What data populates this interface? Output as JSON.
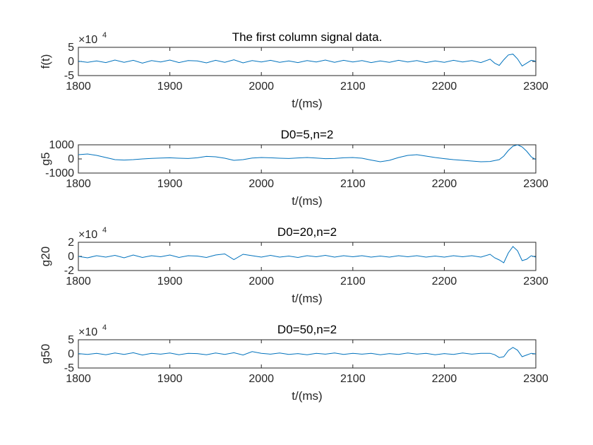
{
  "figure": {
    "background": "#ffffff",
    "line_color": "#0072BD"
  },
  "chart_data": [
    {
      "type": "line",
      "title": "The first column signal data.",
      "xlabel": "t/(ms)",
      "ylabel": "f(t)",
      "multiplier_base": "×10",
      "multiplier_exp": "4",
      "xlim": [
        1800,
        2300
      ],
      "ylim": [
        -5,
        5
      ],
      "xticks": [
        "1800",
        "1900",
        "2000",
        "2100",
        "2200",
        "2300"
      ],
      "yticks": [
        "5",
        "0",
        "-5"
      ],
      "series": [
        {
          "x": [
            1800,
            1810,
            1820,
            1830,
            1840,
            1850,
            1860,
            1870,
            1880,
            1890,
            1900,
            1910,
            1920,
            1930,
            1940,
            1950,
            1960,
            1970,
            1980,
            1990,
            2000,
            2010,
            2020,
            2030,
            2040,
            2050,
            2060,
            2070,
            2080,
            2090,
            2100,
            2110,
            2120,
            2130,
            2140,
            2150,
            2160,
            2170,
            2180,
            2190,
            2200,
            2210,
            2220,
            2230,
            2240,
            2250,
            2255,
            2260,
            2265,
            2270,
            2275,
            2280,
            2285,
            2290,
            2295,
            2300
          ],
          "y": [
            0.1,
            -0.3,
            0.2,
            -0.4,
            0.5,
            -0.3,
            0.4,
            -0.6,
            0.3,
            -0.2,
            0.5,
            -0.4,
            0.3,
            0.2,
            -0.5,
            0.4,
            -0.3,
            0.6,
            -0.5,
            0.3,
            -0.2,
            0.4,
            -0.3,
            0.2,
            -0.4,
            0.3,
            -0.2,
            0.5,
            -0.3,
            0.4,
            -0.2,
            0.3,
            -0.4,
            0.2,
            -0.3,
            0.4,
            -0.2,
            0.3,
            -0.4,
            0.2,
            -0.3,
            0.4,
            -0.2,
            0.3,
            -0.4,
            0.8,
            -0.6,
            -1.4,
            0.6,
            2.3,
            2.6,
            0.9,
            -1.6,
            -0.6,
            0.4,
            0.1
          ]
        }
      ]
    },
    {
      "type": "line",
      "title": "D0=5,n=2",
      "xlabel": "t/(ms)",
      "ylabel": "g5",
      "multiplier_base": "",
      "multiplier_exp": "",
      "xlim": [
        1800,
        2300
      ],
      "ylim": [
        -1000,
        1000
      ],
      "xticks": [
        "1800",
        "1900",
        "2000",
        "2100",
        "2200",
        "2300"
      ],
      "yticks": [
        "1000",
        "0",
        "-1000"
      ],
      "series": [
        {
          "x": [
            1800,
            1810,
            1820,
            1830,
            1840,
            1850,
            1860,
            1870,
            1880,
            1890,
            1900,
            1910,
            1920,
            1930,
            1940,
            1950,
            1960,
            1970,
            1980,
            1990,
            2000,
            2010,
            2020,
            2030,
            2040,
            2050,
            2060,
            2070,
            2080,
            2090,
            2100,
            2110,
            2120,
            2130,
            2140,
            2150,
            2160,
            2170,
            2180,
            2190,
            2200,
            2210,
            2220,
            2230,
            2240,
            2250,
            2260,
            2265,
            2270,
            2275,
            2280,
            2285,
            2290,
            2295,
            2300
          ],
          "y": [
            300,
            350,
            250,
            100,
            -50,
            -80,
            -50,
            0,
            40,
            60,
            80,
            50,
            30,
            80,
            180,
            150,
            50,
            -100,
            -50,
            60,
            100,
            80,
            50,
            30,
            70,
            100,
            60,
            20,
            30,
            80,
            100,
            50,
            -80,
            -200,
            -100,
            100,
            250,
            300,
            200,
            100,
            20,
            -50,
            -100,
            -150,
            -200,
            -180,
            -50,
            200,
            600,
            900,
            1000,
            850,
            550,
            150,
            -50
          ]
        }
      ]
    },
    {
      "type": "line",
      "title": "D0=20,n=2",
      "xlabel": "t/(ms)",
      "ylabel": "g20",
      "multiplier_base": "×10",
      "multiplier_exp": "4",
      "xlim": [
        1800,
        2300
      ],
      "ylim": [
        -2,
        2
      ],
      "xticks": [
        "1800",
        "1900",
        "2000",
        "2100",
        "2200",
        "2300"
      ],
      "yticks": [
        "2",
        "0",
        "-2"
      ],
      "series": [
        {
          "x": [
            1800,
            1810,
            1820,
            1830,
            1840,
            1850,
            1860,
            1870,
            1880,
            1890,
            1900,
            1910,
            1920,
            1930,
            1940,
            1950,
            1960,
            1970,
            1980,
            1990,
            2000,
            2010,
            2020,
            2030,
            2040,
            2050,
            2060,
            2070,
            2080,
            2090,
            2100,
            2110,
            2120,
            2130,
            2140,
            2150,
            2160,
            2170,
            2180,
            2190,
            2200,
            2210,
            2220,
            2230,
            2240,
            2250,
            2255,
            2260,
            2265,
            2270,
            2275,
            2280,
            2285,
            2290,
            2295,
            2300
          ],
          "y": [
            0.0,
            -0.2,
            0.1,
            -0.1,
            0.15,
            -0.2,
            0.2,
            -0.15,
            0.1,
            -0.05,
            0.2,
            -0.15,
            0.1,
            0.05,
            -0.15,
            0.2,
            0.35,
            -0.45,
            0.3,
            0.1,
            -0.1,
            0.15,
            -0.1,
            0.05,
            -0.15,
            0.1,
            -0.05,
            0.15,
            -0.1,
            0.1,
            -0.05,
            0.1,
            -0.1,
            0.05,
            -0.1,
            0.1,
            -0.05,
            0.1,
            -0.1,
            0.05,
            -0.1,
            0.1,
            -0.05,
            0.1,
            -0.1,
            0.3,
            -0.2,
            -0.5,
            -0.9,
            0.5,
            1.4,
            0.8,
            -0.6,
            -0.4,
            0.1,
            -0.1
          ]
        }
      ]
    },
    {
      "type": "line",
      "title": "D0=50,n=2",
      "xlabel": "t/(ms)",
      "ylabel": "g50",
      "multiplier_base": "×10",
      "multiplier_exp": "4",
      "xlim": [
        1800,
        2300
      ],
      "ylim": [
        -5,
        5
      ],
      "xticks": [
        "1800",
        "1900",
        "2000",
        "2100",
        "2200",
        "2300"
      ],
      "yticks": [
        "5",
        "0",
        "-5"
      ],
      "series": [
        {
          "x": [
            1800,
            1810,
            1820,
            1830,
            1840,
            1850,
            1860,
            1870,
            1880,
            1890,
            1900,
            1910,
            1920,
            1930,
            1940,
            1950,
            1960,
            1970,
            1980,
            1990,
            2000,
            2010,
            2020,
            2030,
            2040,
            2050,
            2060,
            2070,
            2080,
            2090,
            2100,
            2110,
            2120,
            2130,
            2140,
            2150,
            2160,
            2170,
            2180,
            2190,
            2200,
            2210,
            2220,
            2230,
            2240,
            2250,
            2255,
            2260,
            2265,
            2270,
            2275,
            2280,
            2285,
            2290,
            2295,
            2300
          ],
          "y": [
            0.1,
            -0.2,
            0.2,
            -0.3,
            0.3,
            -0.2,
            0.4,
            -0.4,
            0.2,
            -0.1,
            0.3,
            -0.3,
            0.2,
            0.1,
            -0.3,
            0.3,
            -0.2,
            0.4,
            -0.4,
            0.8,
            0.2,
            -0.1,
            0.3,
            -0.2,
            0.1,
            -0.3,
            0.2,
            -0.1,
            0.3,
            -0.2,
            0.2,
            -0.1,
            0.2,
            -0.3,
            0.1,
            -0.2,
            0.3,
            -0.1,
            0.2,
            -0.3,
            0.1,
            -0.2,
            0.3,
            -0.1,
            0.2,
            0.2,
            -0.3,
            -1.3,
            -1.0,
            1.2,
            2.3,
            1.3,
            -1.0,
            -0.4,
            0.2,
            0.0
          ]
        }
      ]
    }
  ]
}
